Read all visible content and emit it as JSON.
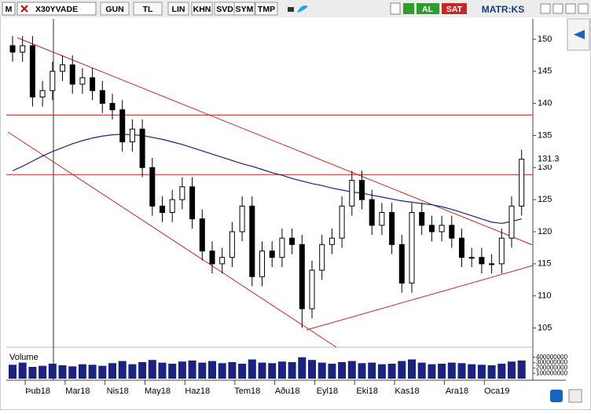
{
  "toolbar": {
    "app_icon": "M",
    "symbol": "X30YVADE",
    "buttons": [
      "GUN",
      "TL",
      "LIN",
      "KHN",
      "SVD",
      "SYM",
      "TMP"
    ],
    "buy": "AL",
    "sell": "SAT",
    "brand": "MATR:KS"
  },
  "chart_data": {
    "type": "candlestick",
    "categories": [
      null,
      null,
      null,
      "Þub18",
      null,
      null,
      null,
      "Mar18",
      null,
      null,
      null,
      "Nis18",
      null,
      null,
      null,
      "May18",
      null,
      null,
      null,
      "Haz18",
      null,
      null,
      null,
      null,
      "Tem18",
      null,
      null,
      null,
      "Aðu18",
      null,
      null,
      null,
      "Eyl18",
      null,
      null,
      null,
      "Eki18",
      null,
      null,
      null,
      "Kas18",
      null,
      null,
      null,
      null,
      "Ara18",
      null,
      null,
      null,
      "Oca19",
      null,
      null
    ],
    "open": [
      149,
      148,
      149,
      141,
      142,
      145,
      146,
      143,
      144,
      142,
      140,
      139,
      134,
      136,
      130,
      124,
      123,
      125,
      127,
      122,
      117,
      115,
      116,
      120,
      124,
      113,
      117,
      116,
      119,
      118,
      108,
      114,
      118,
      119,
      124,
      128,
      125,
      121,
      123,
      118,
      112,
      123,
      121,
      120,
      121,
      119,
      116,
      116,
      115,
      115,
      119,
      124
    ],
    "high": [
      150.5,
      150.5,
      150.5,
      143.5,
      146.5,
      147.5,
      147.5,
      145.5,
      145.5,
      143.5,
      141.5,
      140.5,
      137.5,
      137.5,
      131.5,
      125.5,
      126.5,
      128.5,
      128.5,
      123.5,
      118.5,
      117.5,
      121.5,
      125.5,
      125.5,
      118.5,
      118.5,
      120.5,
      120.5,
      119.5,
      115.5,
      119.5,
      120.5,
      125.5,
      129.5,
      129.5,
      126.5,
      124.5,
      124.5,
      119.5,
      124.5,
      124.5,
      122.5,
      122.5,
      122.5,
      120.5,
      117.5,
      117.5,
      116.5,
      120.5,
      125.5,
      132.8
    ],
    "low": [
      146.5,
      146.5,
      139.5,
      139.5,
      140.5,
      143.5,
      141.5,
      141.5,
      140.5,
      138.5,
      137.5,
      132.5,
      132.5,
      128.5,
      122.5,
      121.5,
      121.5,
      123.5,
      120.5,
      115.5,
      113.5,
      113.5,
      114.5,
      118.5,
      111.5,
      111.5,
      114.5,
      114.5,
      116.5,
      105,
      106.5,
      112.5,
      116.5,
      117.5,
      122.5,
      123.5,
      119.5,
      119.5,
      116.5,
      110.5,
      110.5,
      119.5,
      118.5,
      118.5,
      117.5,
      114.5,
      114.5,
      113.5,
      113.5,
      113.5,
      117.5,
      122.5
    ],
    "close": [
      148,
      149,
      141,
      142,
      145,
      146,
      143,
      144,
      142,
      140,
      139,
      134,
      136,
      130,
      124,
      123,
      125,
      127,
      122,
      117,
      115,
      116,
      120,
      124,
      113,
      117,
      116,
      119,
      118,
      108,
      114,
      118,
      119,
      124,
      128,
      125,
      121,
      123,
      118,
      112,
      123,
      121,
      120,
      121,
      119,
      116,
      116,
      115,
      115,
      119,
      124,
      131.3
    ],
    "up_color": "#ffffff",
    "down_color": "#000000",
    "moving_average": {
      "color": "#1a237e",
      "values": [
        129.5,
        130.2,
        131,
        131.8,
        132.5,
        133.1,
        133.7,
        134.2,
        134.6,
        134.9,
        135.1,
        135.2,
        135.1,
        135,
        134.7,
        134.4,
        134,
        133.6,
        133.1,
        132.6,
        132.1,
        131.6,
        131.1,
        130.6,
        130.2,
        129.7,
        129.2,
        128.8,
        128.3,
        127.9,
        127.5,
        127.2,
        126.8,
        126.5,
        126.2,
        126,
        125.7,
        125.4,
        125.1,
        124.8,
        124.6,
        124.4,
        124.2,
        123.9,
        123.5,
        123,
        122.5,
        122,
        121.5,
        121.3,
        121.6,
        122
      ]
    },
    "hlines": [
      138.2,
      128.9
    ],
    "hline_color": "#cc2222",
    "last_price": 131.3,
    "ylim": [
      102,
      154.4
    ],
    "yticks": [
      105,
      110,
      115,
      120,
      125,
      130,
      135,
      140,
      145,
      150
    ],
    "volume": {
      "label": "Volume",
      "color": "#1a237e",
      "ylim": [
        0,
        500000000
      ],
      "yticks": [
        100000000,
        200000000,
        300000000,
        400000000
      ],
      "values": [
        260000000,
        300000000,
        220000000,
        240000000,
        280000000,
        250000000,
        230000000,
        270000000,
        260000000,
        240000000,
        290000000,
        330000000,
        270000000,
        310000000,
        350000000,
        300000000,
        280000000,
        320000000,
        340000000,
        300000000,
        330000000,
        290000000,
        310000000,
        280000000,
        360000000,
        300000000,
        290000000,
        320000000,
        310000000,
        400000000,
        350000000,
        300000000,
        280000000,
        310000000,
        330000000,
        290000000,
        300000000,
        270000000,
        280000000,
        330000000,
        360000000,
        300000000,
        270000000,
        280000000,
        300000000,
        290000000,
        270000000,
        260000000,
        250000000,
        280000000,
        320000000,
        340000000
      ]
    }
  }
}
